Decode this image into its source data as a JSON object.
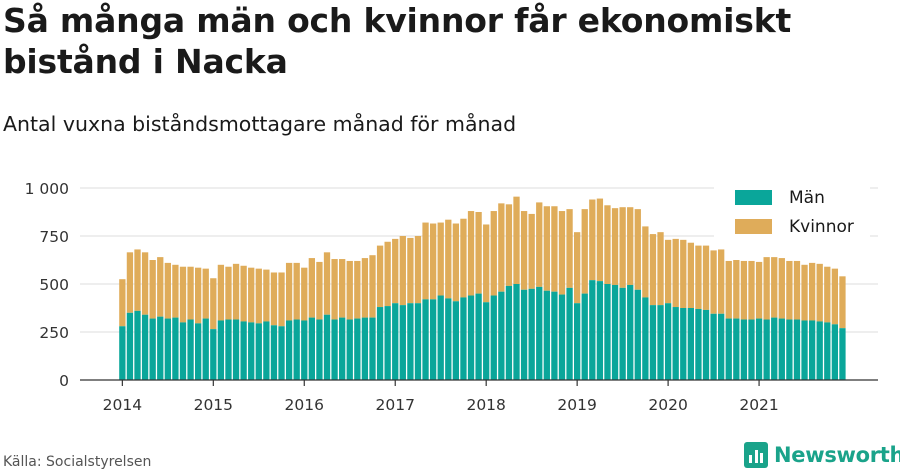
{
  "title": "Så många män och kvinnor får ekonomiskt bistånd i Nacka",
  "subtitle": "Antal vuxna biståndsmottagare månad för månad",
  "source": "Källa: Socialstyrelsen",
  "brand": {
    "name": "Newsworthy",
    "icon": "newsworthy-logo-icon"
  },
  "colors": {
    "man": "#0aa69a",
    "kvinnor": "#dfac5a",
    "grid": "#dddddd",
    "axis": "#333333"
  },
  "chart_data": {
    "type": "bar",
    "stacked": true,
    "ylim": [
      0,
      1000
    ],
    "yticks": [
      0,
      250,
      500,
      750,
      1000
    ],
    "ytick_labels": [
      "0",
      "250",
      "500",
      "750",
      "1 000"
    ],
    "xticks": [
      "2014",
      "2015",
      "2016",
      "2017",
      "2018",
      "2019",
      "2020",
      "2021"
    ],
    "start": "2014-01",
    "grid": true,
    "legend_position": "top-right",
    "series": [
      {
        "name": "Män",
        "values": [
          280,
          350,
          360,
          340,
          320,
          330,
          320,
          325,
          300,
          315,
          295,
          320,
          265,
          310,
          315,
          315,
          305,
          300,
          295,
          305,
          285,
          280,
          310,
          315,
          310,
          325,
          315,
          340,
          315,
          325,
          315,
          320,
          325,
          325,
          380,
          385,
          400,
          390,
          400,
          400,
          420,
          420,
          440,
          425,
          410,
          430,
          440,
          450,
          405,
          440,
          460,
          490,
          500,
          470,
          475,
          485,
          465,
          460,
          445,
          480,
          400,
          450,
          520,
          515,
          500,
          495,
          480,
          495,
          470,
          430,
          390,
          390,
          400,
          380,
          375,
          375,
          370,
          365,
          345,
          345,
          320,
          320,
          315,
          315,
          320,
          315,
          325,
          320,
          315,
          315,
          310,
          310,
          305,
          300,
          290,
          270
        ]
      },
      {
        "name": "Kvinnor",
        "values": [
          245,
          315,
          320,
          325,
          305,
          310,
          290,
          275,
          290,
          275,
          290,
          260,
          265,
          290,
          275,
          290,
          290,
          285,
          285,
          270,
          275,
          280,
          300,
          295,
          275,
          310,
          300,
          325,
          315,
          305,
          305,
          300,
          310,
          325,
          320,
          335,
          335,
          360,
          340,
          350,
          400,
          395,
          380,
          410,
          405,
          410,
          440,
          425,
          405,
          440,
          460,
          425,
          455,
          410,
          390,
          440,
          440,
          445,
          435,
          410,
          370,
          440,
          420,
          430,
          410,
          400,
          420,
          405,
          420,
          370,
          370,
          380,
          330,
          355,
          355,
          340,
          330,
          335,
          330,
          335,
          300,
          305,
          305,
          305,
          295,
          325,
          315,
          315,
          305,
          305,
          290,
          300,
          300,
          290,
          290,
          270
        ]
      }
    ]
  }
}
